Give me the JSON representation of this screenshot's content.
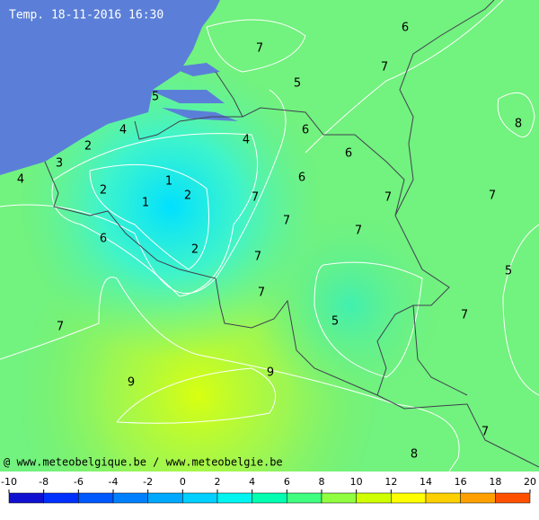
{
  "title": "Temp. 18-11-2016 16:30",
  "credit": "@ www.meteobelgique.be / www.meteobelgie.be",
  "map_labels": [
    7,
    6,
    7,
    5,
    5,
    8,
    4,
    6,
    4,
    2,
    6,
    3,
    4,
    1,
    6,
    2,
    2,
    7,
    7,
    1,
    7,
    7,
    7,
    6,
    2,
    7,
    5,
    7,
    7,
    5,
    7,
    9,
    9,
    7,
    8
  ],
  "legend": {
    "ticks": [
      -10,
      -8,
      -6,
      -4,
      -2,
      0,
      2,
      4,
      6,
      8,
      10,
      12,
      14,
      16,
      18,
      20
    ],
    "colors": [
      "#1010d0",
      "#0030ff",
      "#0058ff",
      "#0080ff",
      "#00a8ff",
      "#00d0ff",
      "#00f4f0",
      "#00ffb0",
      "#40ff80",
      "#90ff40",
      "#d0ff00",
      "#ffff00",
      "#ffd000",
      "#ffa000",
      "#ff5000"
    ]
  }
}
